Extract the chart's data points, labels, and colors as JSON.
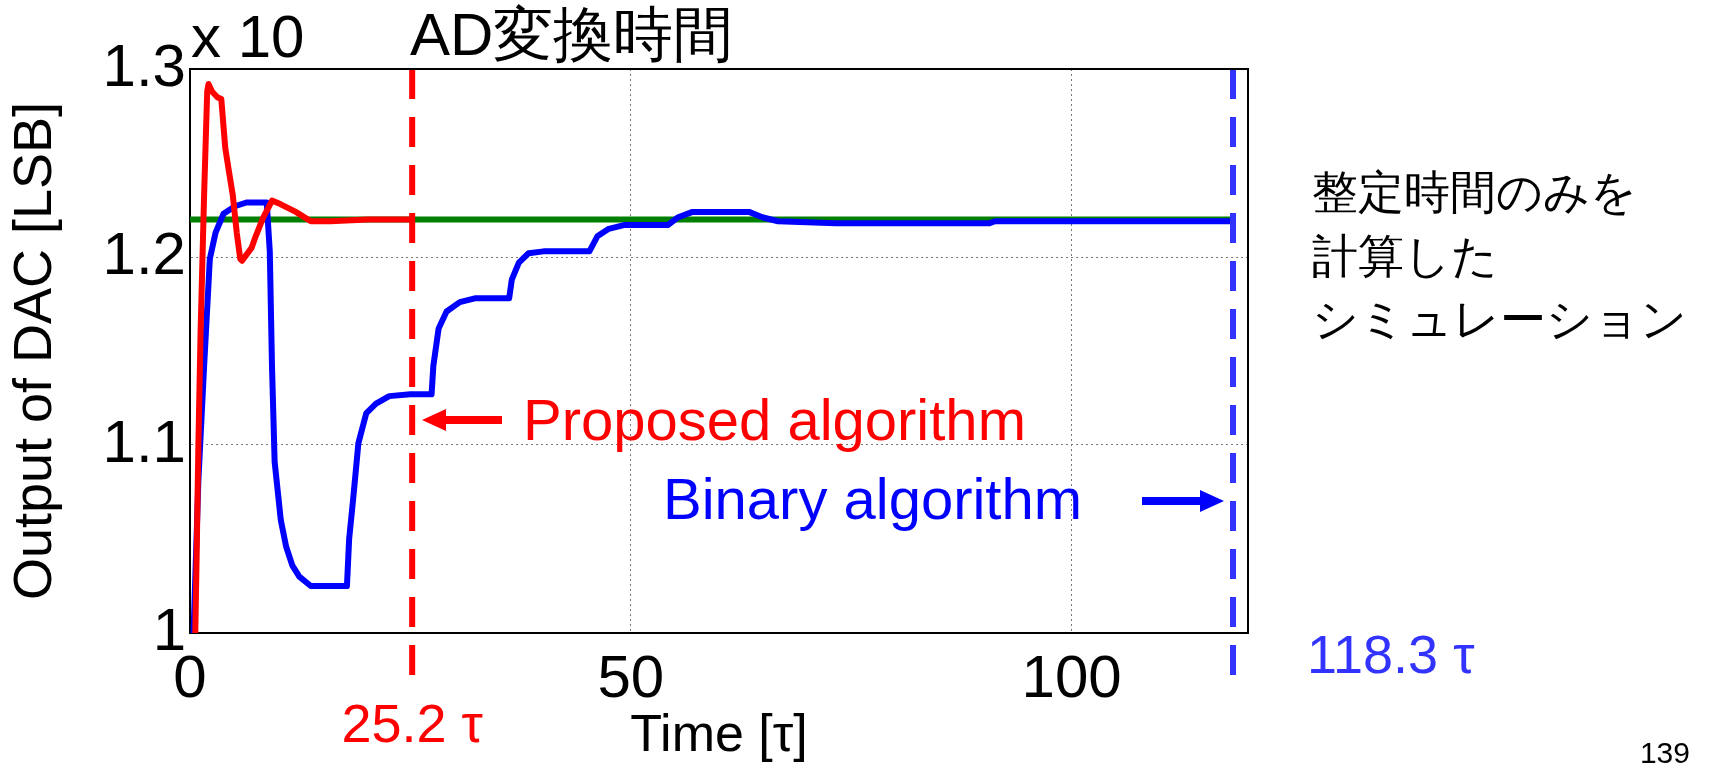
{
  "chart_data": {
    "type": "line",
    "title": "AD変換時間",
    "xlabel": "Time [τ]",
    "ylabel": "Output of DAC [LSB]",
    "xlim": [
      0,
      120
    ],
    "xticks": [
      0,
      50,
      100
    ],
    "ylim": [
      1,
      1.3
    ],
    "yticks": [
      1,
      1.1,
      1.2,
      1.3
    ],
    "grid": true,
    "series": [
      {
        "name": "Proposed algorithm",
        "color": "#ff0000",
        "x": [
          0.6,
          0.75,
          0.95,
          1.2,
          1.6,
          1.95,
          2.1,
          2.5,
          3.1,
          3.55,
          4.0,
          4.4,
          4.85,
          5.3,
          5.7,
          5.9,
          7.0,
          7.45,
          8.3,
          9.3,
          10.3,
          12.0,
          13.7,
          15.9,
          20.2,
          25.2
        ],
        "values": [
          1.0,
          1.04,
          1.1,
          1.16,
          1.233,
          1.288,
          1.292,
          1.288,
          1.285,
          1.284,
          1.258,
          1.246,
          1.233,
          1.213,
          1.199,
          1.198,
          1.205,
          1.211,
          1.221,
          1.23,
          1.228,
          1.224,
          1.219,
          1.219,
          1.22,
          1.22
        ]
      },
      {
        "name": "Binary algorithm",
        "color": "#0000ff",
        "x": [
          0.4,
          0.95,
          1.6,
          2.25,
          2.9,
          3.8,
          5.1,
          6.4,
          8.7,
          9.05,
          9.3,
          9.6,
          10.3,
          10.9,
          11.6,
          12.4,
          13.7,
          15.5,
          17.8,
          18.05,
          18.5,
          19.1,
          20.0,
          21.1,
          22.6,
          25.0,
          27.4,
          27.6,
          28.2,
          29.1,
          30.6,
          32.3,
          36.2,
          36.5,
          37.3,
          38.4,
          40.1,
          45.3,
          46.2,
          47.5,
          49.2,
          54.2,
          55.3,
          57.0,
          63.4,
          65.0,
          66.7,
          73.2,
          90.7,
          91.3,
          118.3
        ],
        "values": [
          1.0,
          1.081,
          1.142,
          1.199,
          1.213,
          1.223,
          1.227,
          1.229,
          1.229,
          1.203,
          1.142,
          1.091,
          1.06,
          1.046,
          1.036,
          1.03,
          1.025,
          1.025,
          1.025,
          1.05,
          1.071,
          1.101,
          1.117,
          1.122,
          1.126,
          1.127,
          1.127,
          1.142,
          1.162,
          1.171,
          1.176,
          1.178,
          1.178,
          1.188,
          1.197,
          1.202,
          1.203,
          1.203,
          1.211,
          1.215,
          1.217,
          1.217,
          1.221,
          1.224,
          1.224,
          1.221,
          1.219,
          1.218,
          1.218,
          1.219,
          1.219
        ]
      },
      {
        "color": "#008000",
        "x": [
          0,
          118.3
        ],
        "values": [
          1.22,
          1.22
        ]
      }
    ],
    "ref_lines": [
      {
        "axis": "x",
        "value": 25.2,
        "label": "25.2 τ",
        "color": "#ff0000",
        "line_style": "dashed"
      },
      {
        "axis": "x",
        "value": 118.3,
        "label": "118.3 τ",
        "color": "#3333ff",
        "line_style": "dashed"
      }
    ],
    "annotations": [
      "x 10",
      "整定時間のみを計算したシミュレーション",
      "139"
    ]
  }
}
